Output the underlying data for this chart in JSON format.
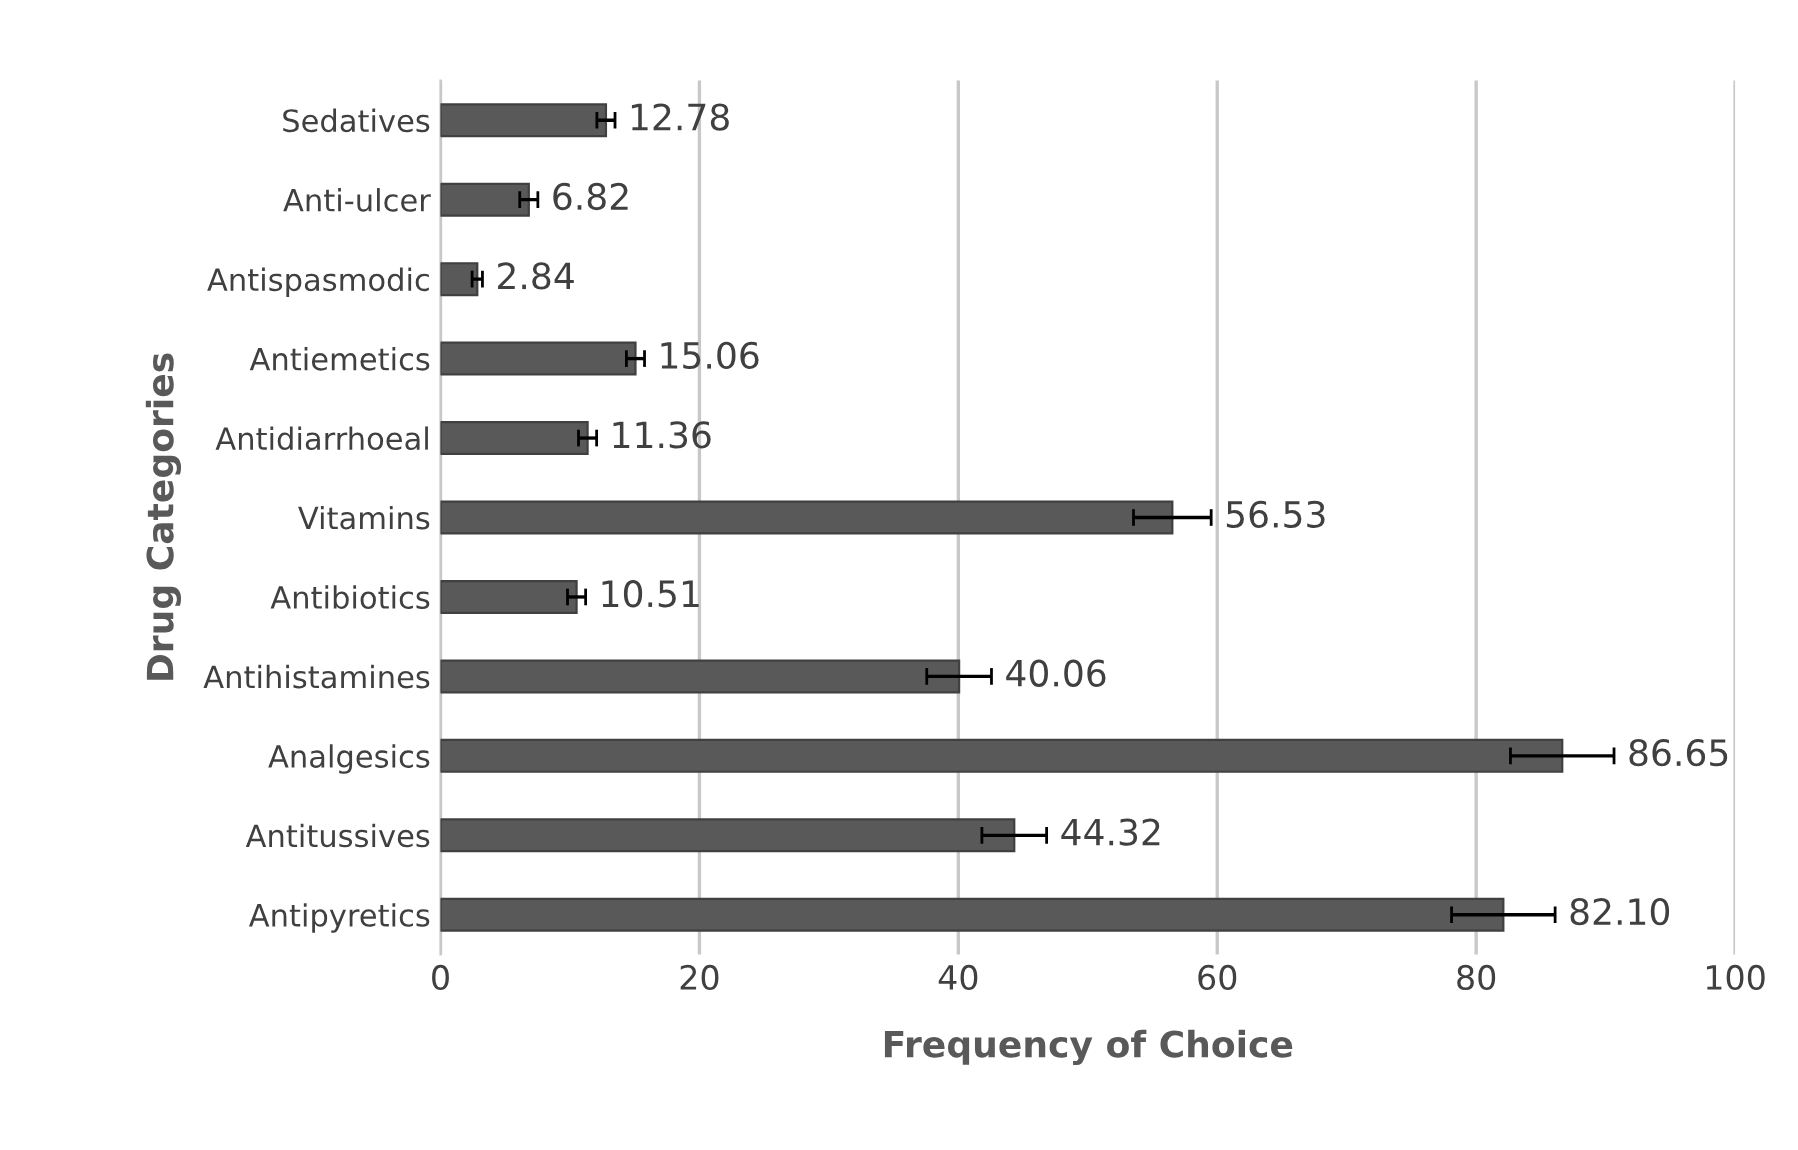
{
  "chart_data": {
    "type": "bar",
    "orientation": "horizontal",
    "xlabel": "Frequency of Choice",
    "ylabel": "Drug Categories",
    "categories": [
      "Sedatives",
      "Anti-ulcer",
      "Antispasmodic",
      "Antiemetics",
      "Antidiarrhoeal",
      "Vitamins",
      "Antibiotics",
      "Antihistamines",
      "Analgesics",
      "Antitussives",
      "Antipyretics"
    ],
    "values": [
      12.78,
      6.82,
      2.84,
      15.06,
      11.36,
      56.53,
      10.51,
      40.06,
      86.65,
      44.32,
      82.1
    ],
    "errors": [
      0.7,
      0.7,
      0.4,
      0.7,
      0.7,
      3,
      0.7,
      2.5,
      4,
      2.5,
      4
    ],
    "value_labels": [
      "12.78",
      "6.82",
      "2.84",
      "15.06",
      "11.36",
      "56.53",
      "10.51",
      "40.06",
      "86.65",
      "44.32",
      "82.10"
    ],
    "color": "#595959",
    "xlim": [
      0,
      100
    ],
    "xticks": [
      0,
      20,
      40,
      60,
      80,
      100
    ],
    "grid": "x",
    "legend": false
  }
}
